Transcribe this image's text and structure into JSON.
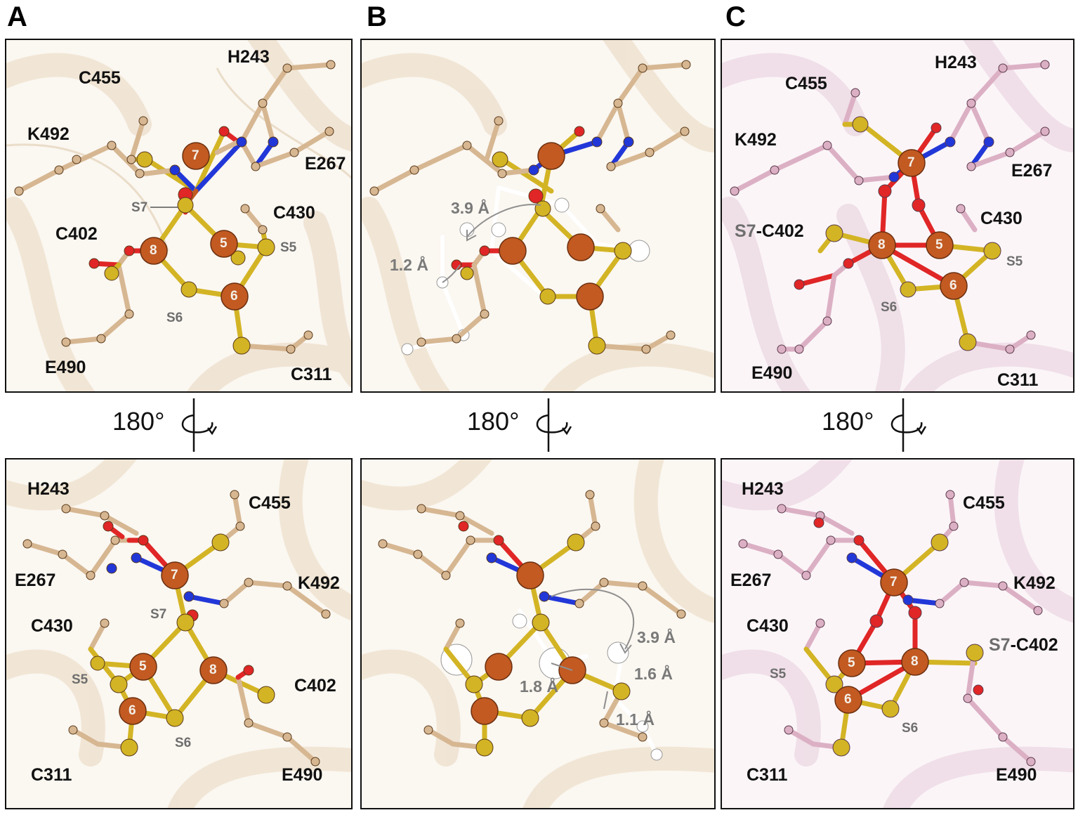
{
  "panels": {
    "A": "A",
    "B": "B",
    "C": "C"
  },
  "rotation_label": "180°",
  "residues": {
    "H243": "H243",
    "C455": "C455",
    "K492": "K492",
    "E267": "E267",
    "C430": "C430",
    "C402": "C402",
    "E490": "E490",
    "C311": "C311",
    "S7_C402": "S7-C402"
  },
  "sulfur_labels": {
    "S5": "S5",
    "S6": "S6",
    "S7": "S7"
  },
  "iron_numbers": {
    "fe5": "5",
    "fe6": "6",
    "fe7": "7",
    "fe8": "8"
  },
  "distances": {
    "d39": "3.9 Å",
    "d12": "1.2 Å",
    "d18": "1.8 Å",
    "d16": "1.6 Å",
    "d11": "1.1 Å"
  },
  "colors": {
    "iron": "#c25a22",
    "sulfur": "#d3b424",
    "oxygen": "#e02626",
    "nitrogen": "#2237d8",
    "carbon_tan": "#d6b792",
    "carbon_pink": "#dcb0c4",
    "ribbon_tan": "#efe3d2",
    "ribbon_pink": "#eedde6"
  }
}
